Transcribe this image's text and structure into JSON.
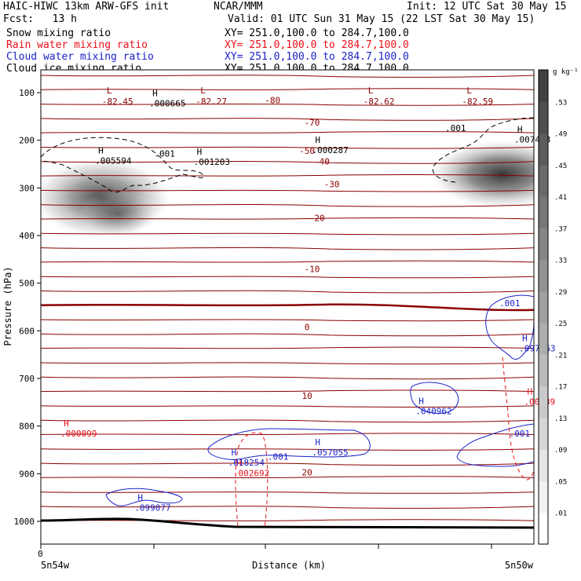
{
  "header": {
    "title_left": "HAIC-HIWC 13km ARW-GFS init",
    "org": "NCAR/MMM",
    "init": "Init: 12 UTC Sat 30 May 15",
    "fcst": "Fcst:   13 h",
    "valid": "Valid: 01 UTC Sun 31 May 15 (22 LST Sat 30 May 15)"
  },
  "fields": [
    {
      "label": "Snow mixing ratio",
      "xy": "",
      "color": "#000000"
    },
    {
      "label": "Rain water mixing ratio",
      "xy": "XY= 251.0,100.0 to 284.7,100.0",
      "color": "#e8111b"
    },
    {
      "label": "Cloud water mixing ratio",
      "xy": "XY= 251.0,100.0 to 284.7,100.0",
      "color": "#1a22c8"
    },
    {
      "label": "Cloud ice mixing ratio",
      "xy": "XY= 251.0,100.0 to 284.7,100.0",
      "color": "#000000"
    }
  ],
  "snow_xy": "XY= 251.0,100.0 to 284.7,100.0",
  "colorbar": {
    "unit": "g kg⁻¹",
    "levels": [
      ".01",
      ".05",
      ".09",
      ".13",
      ".17",
      ".21",
      ".25",
      ".29",
      ".33",
      ".37",
      ".41",
      ".45",
      ".49",
      ".53"
    ]
  },
  "chart_data": {
    "type": "contour-cross-section",
    "ylabel": "Pressure (hPa)",
    "xlabel": "Distance (km)",
    "x_left_label": "5n54w",
    "x_right_label": "5n50w",
    "x_zero_label": "0",
    "yticks": [
      "100",
      "200",
      "300",
      "400",
      "500",
      "600",
      "700",
      "800",
      "900",
      "1000"
    ],
    "ylim": [
      50,
      1050
    ],
    "temperature_labels": [
      {
        "text": "-80",
        "p": 116,
        "d": 0.47
      },
      {
        "text": "-70",
        "p": 163,
        "d": 0.55
      },
      {
        "text": "-50",
        "p": 222,
        "d": 0.54
      },
      {
        "text": "-40",
        "p": 244,
        "d": 0.57
      },
      {
        "text": "-30",
        "p": 292,
        "d": 0.59
      },
      {
        "text": "-20",
        "p": 363,
        "d": 0.56
      },
      {
        "text": "-10",
        "p": 470,
        "d": 0.55
      },
      {
        "text": "0",
        "p": 592,
        "d": 0.54
      },
      {
        "text": "10",
        "p": 736,
        "d": 0.54
      },
      {
        "text": "20",
        "p": 897,
        "d": 0.54
      }
    ],
    "low_markers": [
      {
        "text": "L",
        "value": "-82.45",
        "p": 82,
        "d": 0.14
      },
      {
        "text": "L",
        "value": "-82.27",
        "p": 82,
        "d": 0.33
      },
      {
        "text": "L",
        "value": "-82.62",
        "p": 82,
        "d": 0.67
      },
      {
        "text": "L",
        "value": "-82.59",
        "p": 82,
        "d": 0.87
      }
    ],
    "snow_maxima": [
      {
        "value": ".000665",
        "p": 114,
        "d": 0.22
      },
      {
        "value": ".005594",
        "p": 234,
        "d": 0.11
      },
      {
        "value": ".001203",
        "p": 237,
        "d": 0.31
      },
      {
        "value": ".000287",
        "p": 212,
        "d": 0.55
      },
      {
        "value": ".007458",
        "p": 190,
        "d": 0.96
      }
    ],
    "snow_contour_labels": [
      {
        "text": ".001",
        "p": 234,
        "d": 0.23
      },
      {
        "text": ".001",
        "p": 181,
        "d": 0.82
      }
    ],
    "rain_maxima": [
      {
        "value": ".000099",
        "p": 807,
        "d": 0.04
      },
      {
        "value": ".002692",
        "p": 890,
        "d": 0.39
      },
      {
        "value": ".00189",
        "p": 740,
        "d": 0.98
      }
    ],
    "cloud_water_maxima": [
      {
        "value": ".099077",
        "p": 963,
        "d": 0.19
      },
      {
        "value": ".018254",
        "p": 868,
        "d": 0.38
      },
      {
        "value": ".057055",
        "p": 847,
        "d": 0.55
      },
      {
        "value": ".040962",
        "p": 760,
        "d": 0.76
      },
      {
        "value": ".097963",
        "p": 628,
        "d": 0.97
      }
    ],
    "cloud_water_contour_labels": [
      {
        "text": ".001",
        "p": 871,
        "d": 0.46
      },
      {
        "text": ".001",
        "p": 548,
        "d": 0.93
      },
      {
        "text": ".001",
        "p": 822,
        "d": 0.95
      }
    ]
  }
}
